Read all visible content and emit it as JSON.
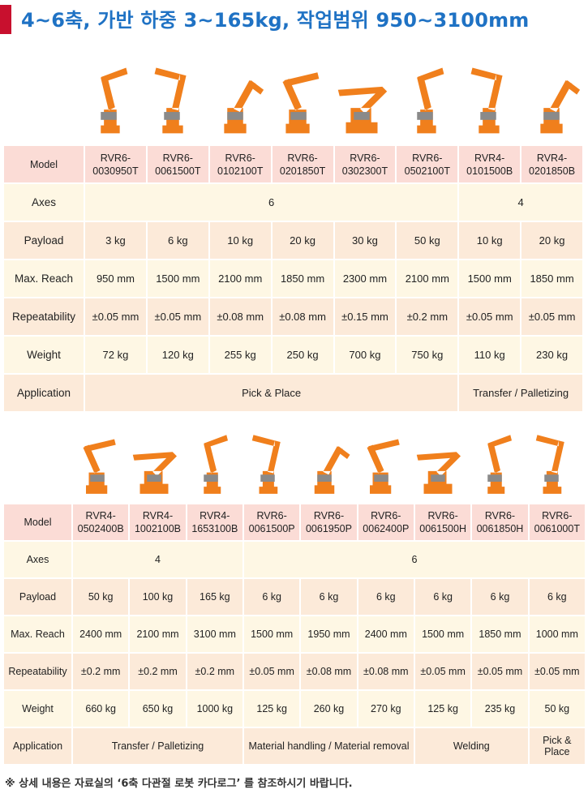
{
  "title": "4~6축, 가반 하중 3~165kg, 작업범위 950~3100mm",
  "colors": {
    "title": "#1f72c4",
    "accent_bar": "#c8102e",
    "robot": "#f07f1c",
    "model_row": "#fbdcd6",
    "row_light": "#fef7e4",
    "row_dark": "#fcead9"
  },
  "table1": {
    "labels": [
      "Model",
      "Axes",
      "Payload",
      "Max. Reach",
      "Repeatability",
      "Weight",
      "Application"
    ],
    "models": [
      [
        "RVR6-",
        "0030950T"
      ],
      [
        "RVR6-",
        "0061500T"
      ],
      [
        "RVR6-",
        "0102100T"
      ],
      [
        "RVR6-",
        "0201850T"
      ],
      [
        "RVR6-",
        "0302300T"
      ],
      [
        "RVR6-",
        "0502100T"
      ],
      [
        "RVR4-",
        "0101500B"
      ],
      [
        "RVR4-",
        "0201850B"
      ]
    ],
    "axes": [
      {
        "value": "6",
        "span": 6
      },
      {
        "value": "4",
        "span": 2
      }
    ],
    "payload": [
      "3 kg",
      "6 kg",
      "10 kg",
      "20 kg",
      "30 kg",
      "50 kg",
      "10 kg",
      "20 kg"
    ],
    "reach": [
      "950 mm",
      "1500 mm",
      "2100 mm",
      "1850 mm",
      "2300 mm",
      "2100 mm",
      "1500 mm",
      "1850 mm"
    ],
    "repeatability": [
      "±0.05 mm",
      "±0.05 mm",
      "±0.08 mm",
      "±0.08 mm",
      "±0.15 mm",
      "±0.2 mm",
      "±0.05 mm",
      "±0.05 mm"
    ],
    "weight": [
      "72 kg",
      "120 kg",
      "255 kg",
      "250 kg",
      "700 kg",
      "750 kg",
      "110 kg",
      "230 kg"
    ],
    "application": [
      {
        "value": "Pick & Place",
        "span": 6
      },
      {
        "value": "Transfer / Palletizing",
        "span": 2
      }
    ]
  },
  "table2": {
    "labels": [
      "Model",
      "Axes",
      "Payload",
      "Max. Reach",
      "Repeatability",
      "Weight",
      "Application"
    ],
    "models": [
      [
        "RVR4-",
        "0502400B"
      ],
      [
        "RVR4-",
        "1002100B"
      ],
      [
        "RVR4-",
        "1653100B"
      ],
      [
        "RVR6-",
        "0061500P"
      ],
      [
        "RVR6-",
        "0061950P"
      ],
      [
        "RVR6-",
        "0062400P"
      ],
      [
        "RVR6-",
        "0061500H"
      ],
      [
        "RVR6-",
        "0061850H"
      ],
      [
        "RVR6-",
        "0061000T"
      ]
    ],
    "axes": [
      {
        "value": "4",
        "span": 3
      },
      {
        "value": "6",
        "span": 6
      }
    ],
    "payload": [
      "50 kg",
      "100 kg",
      "165 kg",
      "6 kg",
      "6 kg",
      "6 kg",
      "6 kg",
      "6 kg",
      "6 kg"
    ],
    "reach": [
      "2400 mm",
      "2100 mm",
      "3100 mm",
      "1500 mm",
      "1950 mm",
      "2400 mm",
      "1500 mm",
      "1850 mm",
      "1000 mm"
    ],
    "repeatability": [
      "±0.2 mm",
      "±0.2 mm",
      "±0.2 mm",
      "±0.05 mm",
      "±0.08 mm",
      "±0.08 mm",
      "±0.05 mm",
      "±0.05 mm",
      "±0.05 mm"
    ],
    "weight": [
      "660 kg",
      "650 kg",
      "1000 kg",
      "125 kg",
      "260 kg",
      "270 kg",
      "125 kg",
      "235 kg",
      "50 kg"
    ],
    "application": [
      {
        "value": "Transfer / Palletizing",
        "span": 3
      },
      {
        "value": "Material handling / Material removal",
        "span": 3
      },
      {
        "value": "Welding",
        "span": 2
      },
      {
        "value": "Pick & Place",
        "span": 1
      }
    ]
  },
  "note": "※ 상세 내용은 자료실의 ‘6축 다관절 로봇 카다로그’ 를 참조하시기 바랍니다."
}
